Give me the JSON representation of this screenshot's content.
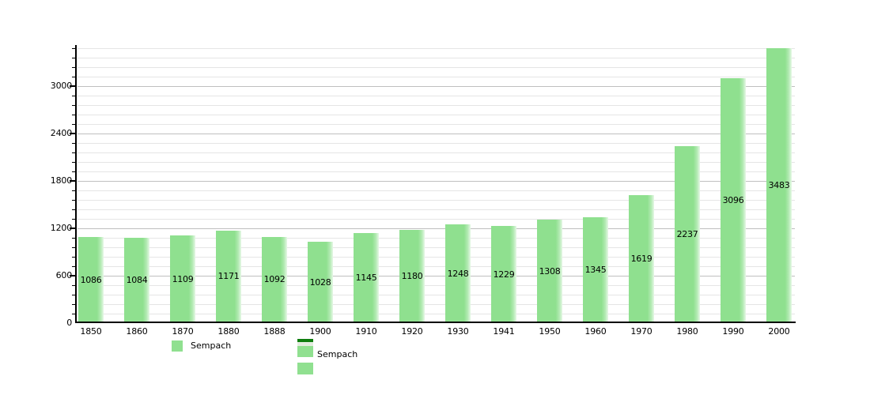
{
  "chart_data": {
    "type": "bar",
    "title": "",
    "xlabel": "",
    "ylabel": "",
    "categories": [
      "1850",
      "1860",
      "1870",
      "1880",
      "1888",
      "1900",
      "1910",
      "1920",
      "1930",
      "1941",
      "1950",
      "1960",
      "1970",
      "1980",
      "1990",
      "2000"
    ],
    "series": [
      {
        "name": "Sempach",
        "values": [
          1086,
          1084,
          1109,
          1171,
          1092,
          1028,
          1145,
          1180,
          1248,
          1229,
          1308,
          1345,
          1619,
          2237,
          3096,
          3483
        ]
      }
    ],
    "bar_value_labels_shown": true,
    "ylim": [
      0,
      3510
    ],
    "y_major_ticks": [
      0,
      600,
      1200,
      1800,
      2400,
      3000
    ],
    "y_minor_step": 120,
    "grid": "horizontal",
    "legend_position": "bottom",
    "legends": [
      {
        "label": "Sempach",
        "swatch": "light-green-square"
      },
      {
        "label": "Sempach",
        "swatch": "dark-green-bar-pale-band-light-green-square",
        "extra_swatch": "light-green-square"
      }
    ],
    "colors": {
      "bar_fill": "#8fe08f",
      "bar_fill_edge_fade": "#e6f8e6",
      "legend_green": "#90e090",
      "legend_dark_green": "#0e7d0e",
      "legend_pale_band": "#e4ece0",
      "grid_minor": "#e5e5e5",
      "grid_major": "#bfbfbf",
      "axis": "#000000",
      "text": "#000000",
      "background": "#ffffff"
    }
  }
}
